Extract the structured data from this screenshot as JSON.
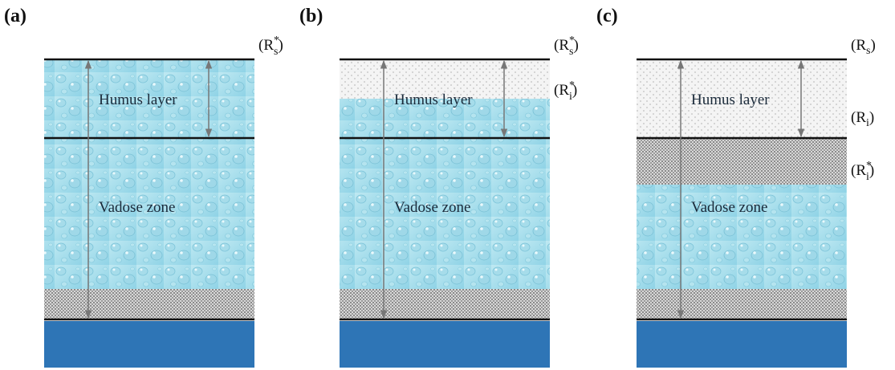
{
  "panels": [
    {
      "label": "(a)",
      "humus_label": "Humus layer",
      "vadose_label": "Vadose zone",
      "markers": [
        {
          "prefix": "(R",
          "subscript": "s",
          "superscript": "*",
          "suffix": ")"
        }
      ]
    },
    {
      "label": "(b)",
      "humus_label": "Humus layer",
      "vadose_label": "Vadose zone",
      "markers": [
        {
          "prefix": "(R",
          "subscript": "s",
          "superscript": "*",
          "suffix": ")"
        },
        {
          "prefix": "(R",
          "subscript": "i",
          "superscript": "*",
          "suffix": ")"
        }
      ]
    },
    {
      "label": "(c)",
      "humus_label": "Humus layer",
      "vadose_label": "Vadose zone",
      "markers": [
        {
          "prefix": "(R",
          "subscript": "s",
          "suffix": ")"
        },
        {
          "prefix": "(R",
          "subscript": "i",
          "suffix": ")"
        },
        {
          "prefix": "(R",
          "subscript": "i",
          "superscript": "*",
          "suffix": ")"
        }
      ]
    }
  ]
}
